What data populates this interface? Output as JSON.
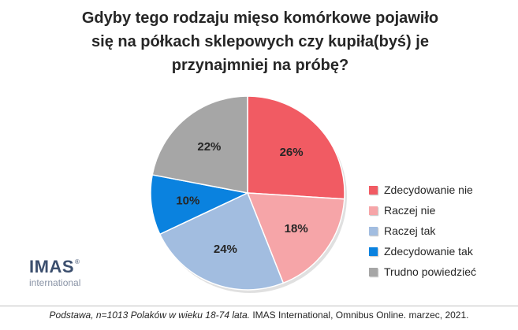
{
  "chart_data": {
    "type": "pie",
    "title": [
      "Gdyby tego rodzaju mięso komórkowe pojawiło",
      "się na półkach sklepowych czy kupiła(byś) je",
      "przynajmniej na próbę?"
    ],
    "slices": [
      {
        "label": "Zdecydowanie nie",
        "value": 26,
        "value_label": "26%",
        "color": "#f15b63"
      },
      {
        "label": "Raczej nie",
        "value": 18,
        "value_label": "18%",
        "color": "#f6a5a8"
      },
      {
        "label": "Raczej tak",
        "value": 24,
        "value_label": "24%",
        "color": "#a2bde0"
      },
      {
        "label": "Zdecydowanie tak",
        "value": 10,
        "value_label": "10%",
        "color": "#0a82df"
      },
      {
        "label": "Trudno powiedzieć",
        "value": 22,
        "value_label": "22%",
        "color": "#a6a6a6"
      }
    ],
    "start_direction": "top",
    "legend_position": "right"
  },
  "logo": {
    "main": "IMAS",
    "reg": "®",
    "sub": "international"
  },
  "footer": {
    "italic_part": "Podstawa, n=1013 Polaków w wieku 18-74 lata.",
    "normal_part": " IMAS International, Omnibus Online. marzec, 2021."
  }
}
